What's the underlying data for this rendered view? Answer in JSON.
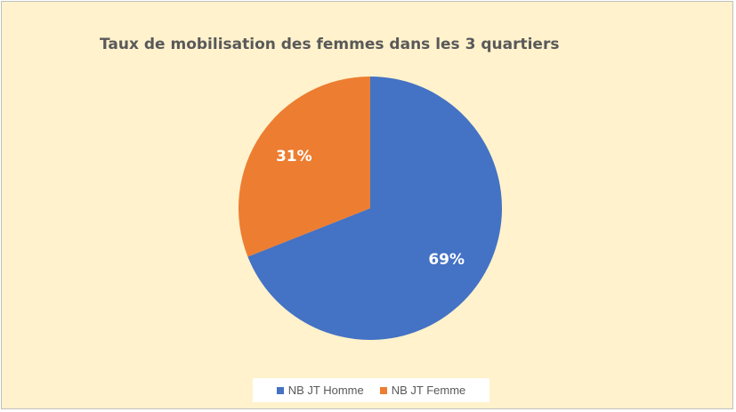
{
  "chart_data": {
    "type": "pie",
    "title": "Taux de mobilisation des femmes dans les 3 quartiers",
    "categories": [
      "NB JT Homme",
      "NB JT Femme"
    ],
    "values": [
      69,
      31
    ],
    "labels": [
      "69%",
      "31%"
    ],
    "colors": [
      "#4472c4",
      "#ed7d31"
    ],
    "legend_position": "bottom",
    "background_color": "#fff2cc"
  }
}
